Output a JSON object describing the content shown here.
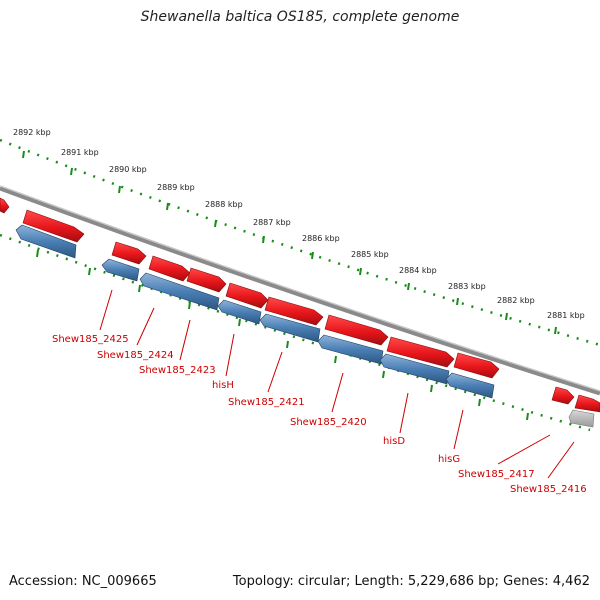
{
  "title": "Shewanella baltica OS185, complete genome",
  "footer": {
    "accession": "Accession: NC_009665",
    "topology": "Topology: circular; Length: 5,229,686 bp; Genes: 4,462"
  },
  "colors": {
    "forward_gene": "#e8161b",
    "reverse_gene": "#4a7fb5",
    "backbone": "#8a8a8a",
    "tick": "#1a8c1a",
    "label": "#cc0000",
    "rna_gene": "#b0b0b0"
  },
  "scale_labels": [
    "2892 kbp",
    "2891 kbp",
    "2890 kbp",
    "2889 kbp",
    "2888 kbp",
    "2887 kbp",
    "2886 kbp",
    "2885 kbp",
    "2884 kbp",
    "2883 kbp",
    "2882 kbp",
    "2881 kbp"
  ],
  "gene_labels": [
    "Shew185_2425",
    "Shew185_2424",
    "Shew185_2423",
    "hisH",
    "Shew185_2421",
    "Shew185_2420",
    "hisD",
    "hisG",
    "Shew185_2417",
    "Shew185_2416"
  ]
}
